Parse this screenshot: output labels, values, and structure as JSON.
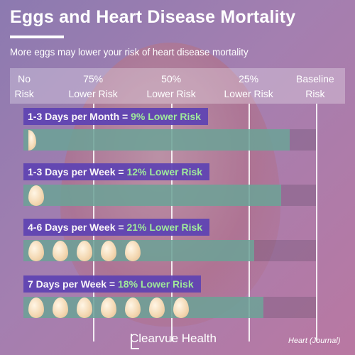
{
  "title": "Eggs and Heart Disease Mortality",
  "subtitle": "More eggs may lower your risk of heart disease mortality",
  "brand": "Clearvue Health",
  "source": "Heart (Journal)",
  "colors": {
    "bar_fill": "#6ea79a",
    "label_bg": "#5f43b3",
    "highlight_text": "#9ef29a"
  },
  "chart_data": {
    "type": "bar",
    "orientation": "horizontal",
    "axis_labels": [
      {
        "line1": "No",
        "line2": "Risk"
      },
      {
        "line1": "75%",
        "line2": "Lower Risk"
      },
      {
        "line1": "50%",
        "line2": "Lower Risk"
      },
      {
        "line1": "25%",
        "line2": "Lower Risk"
      },
      {
        "line1": "Baseline",
        "line2": "Risk"
      }
    ],
    "xlim_relative_risk": [
      0,
      1
    ],
    "categories": [
      {
        "name": "1-3 Days per Month",
        "equals": " = ",
        "risk_text": "9% Lower Risk",
        "lower_risk_pct": 9,
        "relative_risk": 0.91,
        "egg_count": 0.5
      },
      {
        "name": "1-3 Days per Week",
        "equals": " = ",
        "risk_text": "12% Lower Risk",
        "lower_risk_pct": 12,
        "relative_risk": 0.88,
        "egg_count": 1
      },
      {
        "name": "4-6 Days per Week",
        "equals": " = ",
        "risk_text": "21% Lower Risk",
        "lower_risk_pct": 21,
        "relative_risk": 0.79,
        "egg_count": 5
      },
      {
        "name": "7 Days per Week",
        "equals": " = ",
        "risk_text": "18% Lower Risk",
        "lower_risk_pct": 18,
        "relative_risk": 0.82,
        "egg_count": 7
      }
    ]
  }
}
